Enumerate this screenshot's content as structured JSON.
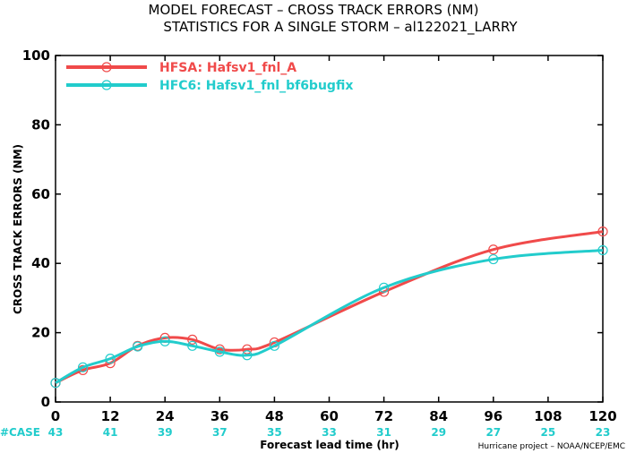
{
  "chart_data": {
    "type": "line",
    "title": "MODEL FORECAST – CROSS TRACK ERRORS (NM)",
    "subtitle": "STATISTICS FOR A SINGLE STORM – al122021_LARRY",
    "xlabel": "Forecast lead time (hr)",
    "ylabel": "CROSS TRACK ERRORS (NM)",
    "xlim": [
      0,
      120
    ],
    "ylim": [
      0,
      100
    ],
    "x_ticks": [
      0,
      12,
      24,
      36,
      48,
      60,
      72,
      84,
      96,
      108,
      120
    ],
    "y_ticks": [
      0,
      20,
      40,
      60,
      80,
      100
    ],
    "case_label": "#CASE",
    "case_counts": [
      43,
      41,
      39,
      37,
      35,
      33,
      31,
      29,
      27,
      25,
      23
    ],
    "legend_position": "top-left",
    "series": [
      {
        "name": "HFSA: Hafsv1_fnl_A",
        "color": "#f04a4a",
        "x": [
          0,
          6,
          12,
          18,
          24,
          30,
          36,
          42,
          48,
          72,
          96,
          120
        ],
        "y": [
          5.5,
          9.2,
          11.2,
          16.2,
          18.5,
          18.0,
          15.2,
          15.2,
          17.2,
          31.8,
          44.0,
          49.2
        ]
      },
      {
        "name": "HFC6: Hafsv1_fnl_bf6bugfix",
        "color": "#22cccc",
        "x": [
          0,
          6,
          12,
          18,
          24,
          30,
          36,
          42,
          48,
          72,
          96,
          120
        ],
        "y": [
          5.5,
          10.0,
          12.5,
          16.0,
          17.5,
          16.2,
          14.5,
          13.5,
          16.2,
          33.0,
          41.2,
          43.8
        ]
      }
    ]
  },
  "credit": "Hurricane project – NOAA/NCEP/EMC"
}
